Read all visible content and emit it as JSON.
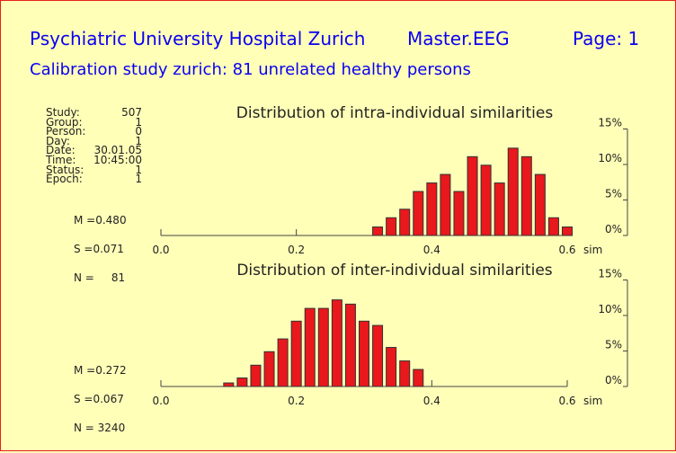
{
  "header": {
    "institution": "Psychiatric University Hospital Zurich",
    "file": "Master.EEG",
    "page_label": "Page:",
    "page_number": "1",
    "subtitle": "Calibration study zurich: 81 unrelated healthy persons"
  },
  "info": [
    {
      "label": "Study:",
      "value": "507"
    },
    {
      "label": "Group:",
      "value": "1"
    },
    {
      "label": "Person:",
      "value": "0"
    },
    {
      "label": "Day:",
      "value": "1"
    },
    {
      "label": "Date:",
      "value": "30.01.05"
    },
    {
      "label": "Time:",
      "value": "10:45:00"
    },
    {
      "label": "Status:",
      "value": "1"
    },
    {
      "label": "Epoch:",
      "value": "1"
    }
  ],
  "colors": {
    "bar": "#e8181c",
    "title_text": "#0a00f0",
    "background": "#ffffb8",
    "border": "#e8201c"
  },
  "chart_data": [
    {
      "type": "bar",
      "title": "Distribution of intra-individual similarities",
      "stats": [
        "M =0.480",
        "S =0.071",
        "N =     81"
      ],
      "xlabel": "sim",
      "xlim": [
        0.0,
        0.6
      ],
      "xticks": [
        "0.0",
        "0.2",
        "0.4",
        "0.6"
      ],
      "ylim": [
        0,
        15
      ],
      "yticks": [
        "0%",
        "5%",
        "10%",
        "15%"
      ],
      "x": [
        0.32,
        0.34,
        0.36,
        0.38,
        0.4,
        0.42,
        0.44,
        0.46,
        0.48,
        0.5,
        0.52,
        0.54,
        0.56,
        0.58,
        0.6
      ],
      "values": [
        1.2,
        2.5,
        3.7,
        6.2,
        7.4,
        8.6,
        6.2,
        11.1,
        9.9,
        7.4,
        12.3,
        11.1,
        8.6,
        2.5,
        1.2
      ]
    },
    {
      "type": "bar",
      "title": "Distribution of inter-individual similarities",
      "stats": [
        "M =0.272",
        "S =0.067",
        "N = 3240"
      ],
      "xlabel": "sim",
      "xlim": [
        0.0,
        0.6
      ],
      "xticks": [
        "0.0",
        "0.2",
        "0.4",
        "0.6"
      ],
      "ylim": [
        0,
        15
      ],
      "yticks": [
        "0%",
        "5%",
        "10%",
        "15%"
      ],
      "x": [
        0.1,
        0.12,
        0.14,
        0.16,
        0.18,
        0.2,
        0.22,
        0.24,
        0.26,
        0.28,
        0.3,
        0.32,
        0.34,
        0.36,
        0.38
      ],
      "values": [
        0.5,
        1.2,
        3.0,
        4.9,
        6.7,
        9.2,
        11.0,
        11.0,
        12.2,
        11.6,
        9.2,
        8.6,
        5.5,
        3.6,
        2.4
      ]
    }
  ]
}
